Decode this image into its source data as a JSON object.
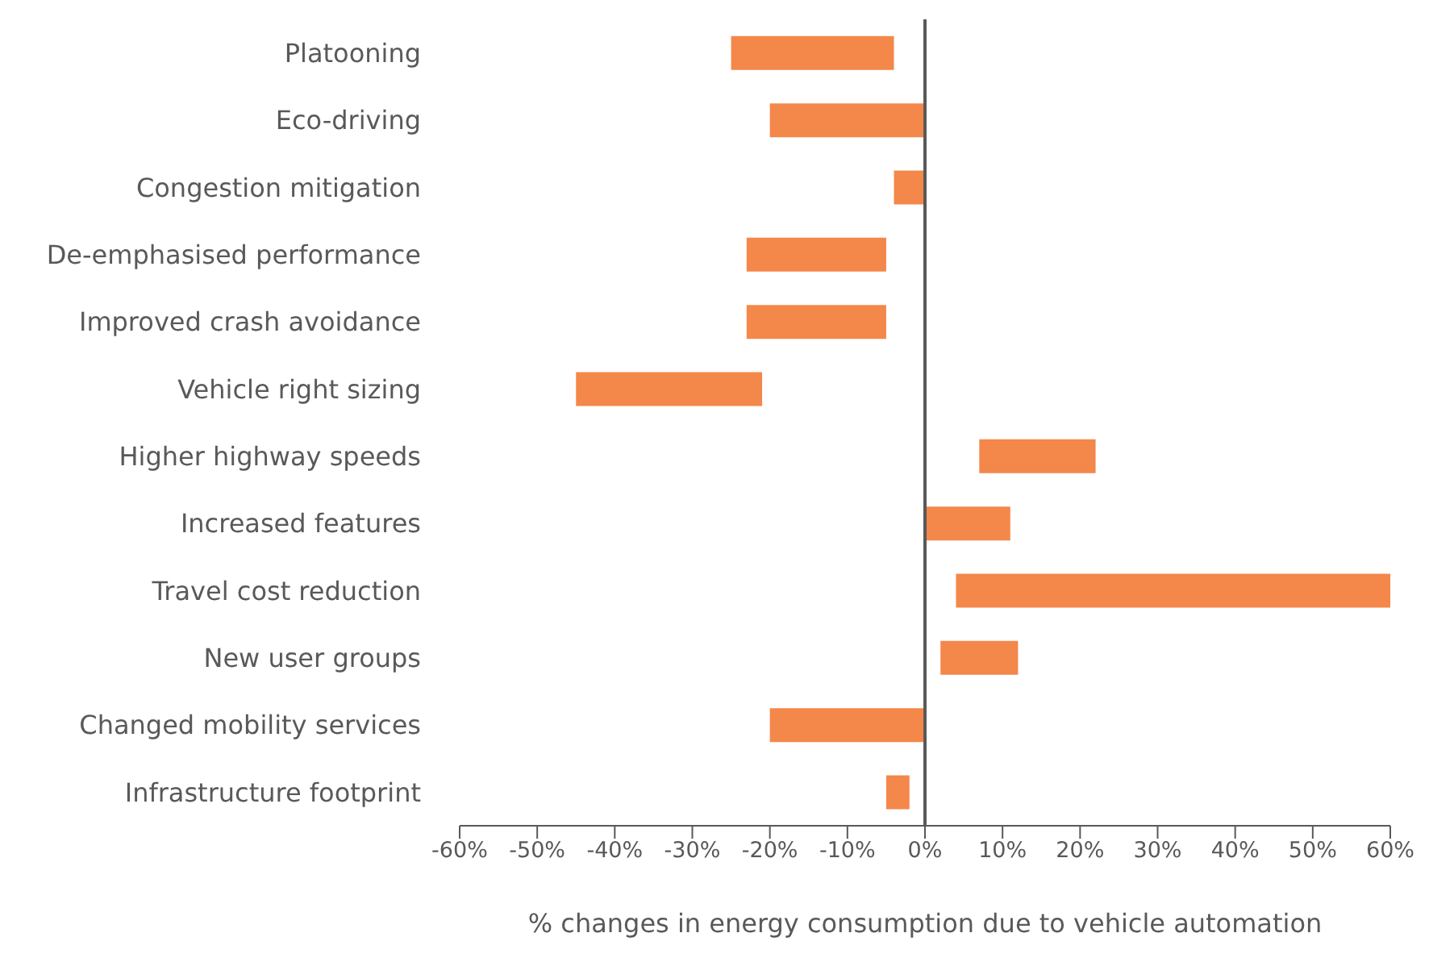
{
  "chart_data": {
    "type": "bar",
    "orientation": "horizontal",
    "xlabel": "% changes in energy consumption due to vehicle automation",
    "categories": [
      "Platooning",
      "Eco-driving",
      "Congestion mitigation",
      "De-emphasised performance",
      "Improved crash avoidance",
      "Vehicle right sizing",
      "Higher highway speeds",
      "Increased features",
      "Travel cost reduction",
      "New user groups",
      "Changed mobility services",
      "Infrastructure footprint"
    ],
    "base": [
      -25,
      -20,
      -4,
      -23,
      -23,
      -45,
      7,
      0,
      4,
      2,
      -20,
      -5
    ],
    "values": [
      21,
      20,
      4,
      18,
      18,
      24,
      15,
      11,
      56,
      10,
      20,
      3
    ],
    "color": "#f4874a",
    "xlim": [
      -60,
      60
    ],
    "xticks": [
      {
        "value": -60,
        "label": "-60%"
      },
      {
        "value": -50,
        "label": "-50%"
      },
      {
        "value": -40,
        "label": "-40%"
      },
      {
        "value": -30,
        "label": "-30%"
      },
      {
        "value": -20,
        "label": "-20%"
      },
      {
        "value": -10,
        "label": "-10%"
      },
      {
        "value": 0,
        "label": "0%"
      },
      {
        "value": 10,
        "label": "10%"
      },
      {
        "value": 20,
        "label": "20%"
      },
      {
        "value": 30,
        "label": "30%"
      },
      {
        "value": 40,
        "label": "40%"
      },
      {
        "value": 50,
        "label": "50%"
      },
      {
        "value": 60,
        "label": "60%"
      }
    ]
  }
}
